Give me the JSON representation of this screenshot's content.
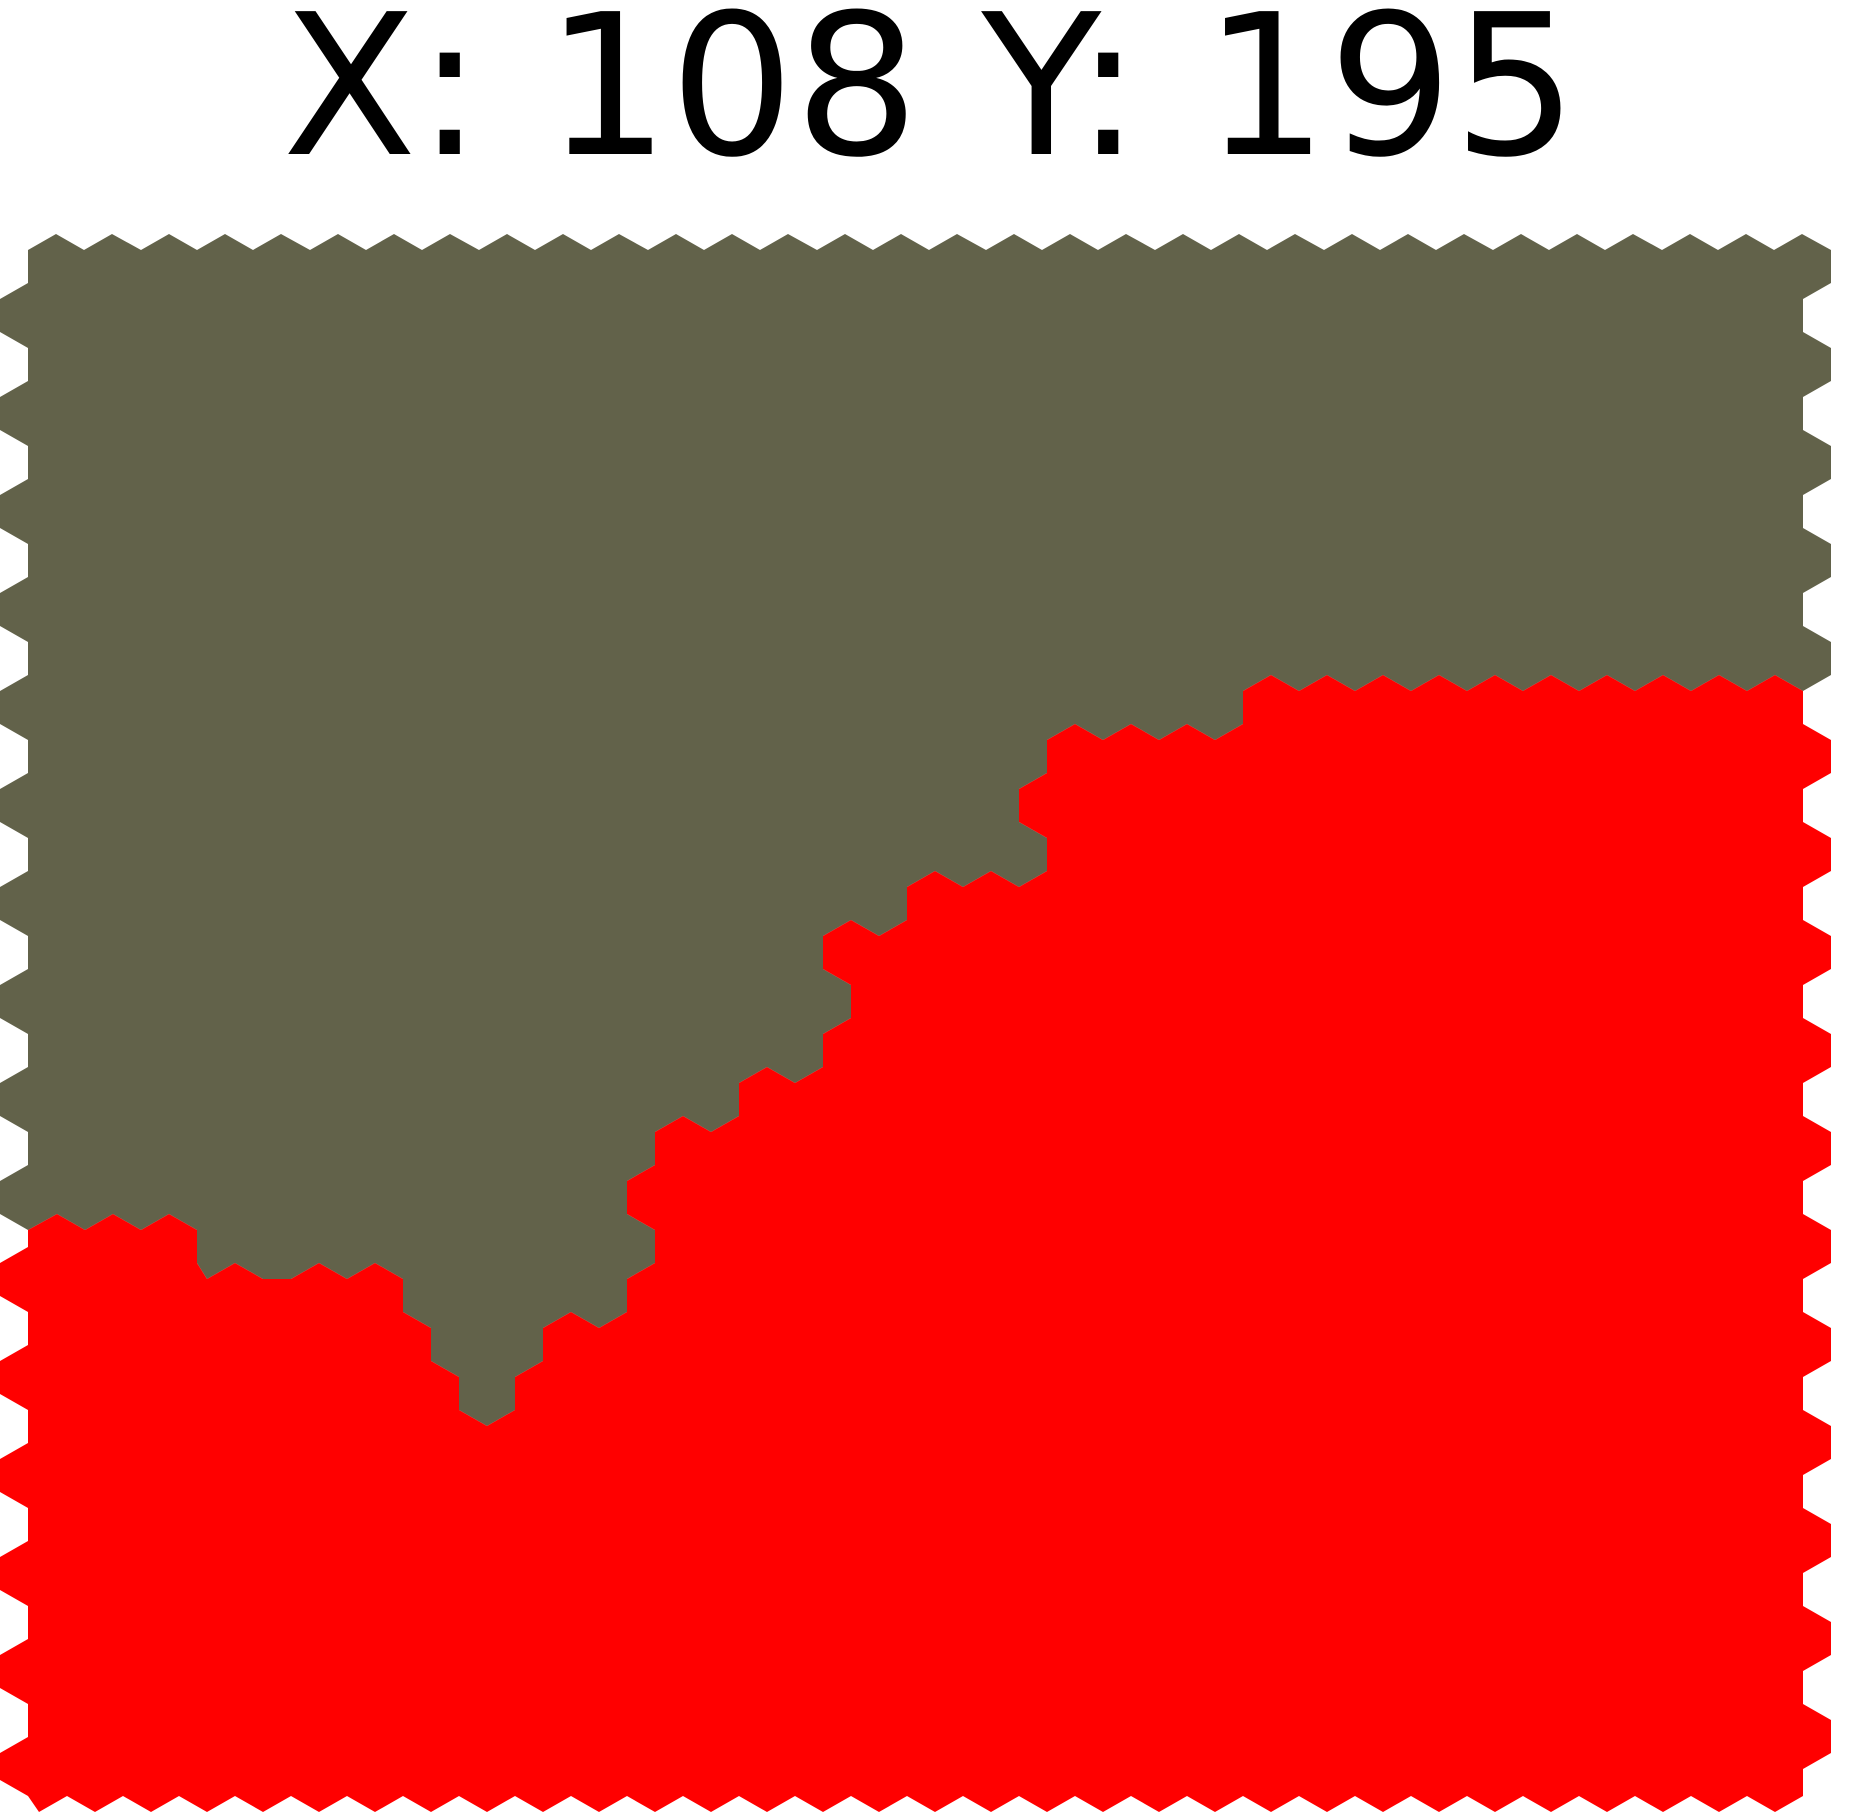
{
  "readout": {
    "x_label": "X:",
    "x_value": "108",
    "y_label": "Y:",
    "y_value": "195"
  },
  "board": {
    "regions": [
      {
        "name": "olive-region",
        "color": "#62624a"
      },
      {
        "name": "red-region",
        "color": "#ff0000"
      }
    ]
  }
}
